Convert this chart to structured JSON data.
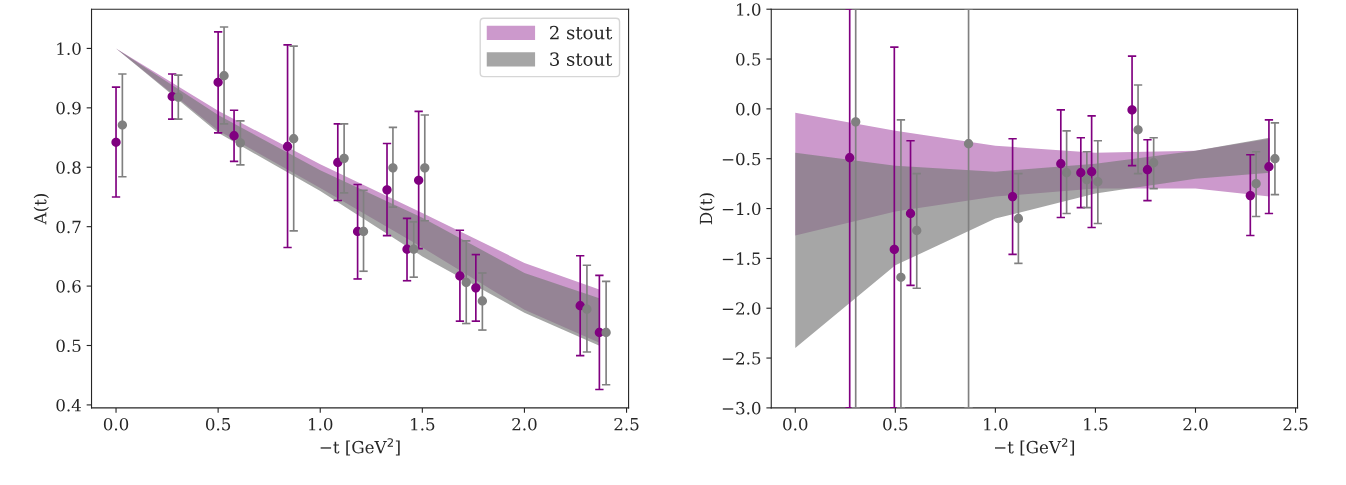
{
  "chart_data": [
    {
      "type": "scatter",
      "xlabel": "−t [GeV$^{2}$]",
      "ylabel": "A(t)",
      "legend": "top right",
      "marker": "circle",
      "xlim": [
        -0.12,
        2.51
      ],
      "ylim": [
        0.395,
        1.066
      ],
      "xticks": [
        {
          "value": 0,
          "label": "0.0"
        },
        {
          "value": 0.5,
          "label": "0.5"
        },
        {
          "value": 1,
          "label": "1.0"
        },
        {
          "value": 1.5,
          "label": "1.5"
        },
        {
          "value": 2,
          "label": "2.0"
        },
        {
          "value": 2.5,
          "label": "2.5"
        }
      ],
      "yticks": [
        {
          "value": 0.4,
          "label": "0.4"
        },
        {
          "value": 0.5,
          "label": "0.5"
        },
        {
          "value": 0.6,
          "label": "0.6"
        },
        {
          "value": 0.7,
          "label": "0.7"
        },
        {
          "value": 0.8,
          "label": "0.8"
        },
        {
          "value": 0.9,
          "label": "0.9"
        },
        {
          "value": 1.0,
          "label": "1.0"
        }
      ],
      "series": [
        {
          "type": "area",
          "name": "2 stout",
          "color": "#cc99cc",
          "x": [
            0,
            0.5,
            1.0,
            1.5,
            2.0,
            2.37
          ],
          "values": [
            null,
            null,
            null,
            null,
            null,
            null
          ],
          "lower": [
            1.0,
            0.862,
            0.765,
            0.665,
            0.56,
            0.504
          ],
          "upper": [
            1.0,
            0.895,
            0.805,
            0.723,
            0.639,
            0.594
          ]
        },
        {
          "type": "area",
          "name": "3 stout",
          "color": "#a6a6a6",
          "x": [
            0,
            0.5,
            1.0,
            1.5,
            2.0,
            2.37
          ],
          "values": [
            null,
            null,
            null,
            null,
            null,
            null
          ],
          "lower": [
            1.0,
            0.858,
            0.76,
            0.65,
            0.555,
            0.499
          ],
          "upper": [
            1.0,
            0.888,
            0.795,
            0.715,
            0.622,
            0.579
          ]
        },
        {
          "color": "#800080",
          "x": [
            0.0,
            0.275,
            0.5,
            0.578,
            0.84,
            1.086,
            1.183,
            1.327,
            1.425,
            1.482,
            1.684,
            1.762,
            2.273,
            2.367
          ],
          "values": [
            0.842,
            0.919,
            0.943,
            0.853,
            0.835,
            0.808,
            0.692,
            0.762,
            0.662,
            0.778,
            0.617,
            0.597,
            0.567,
            0.522
          ],
          "errors": [
            [
              0.75,
              0.935
            ],
            [
              0.881,
              0.957
            ],
            [
              0.858,
              1.028
            ],
            [
              0.81,
              0.896
            ],
            [
              0.665,
              1.006
            ],
            [
              0.744,
              0.873
            ],
            [
              0.612,
              0.771
            ],
            [
              0.685,
              0.84
            ],
            [
              0.609,
              0.714
            ],
            [
              0.663,
              0.894
            ],
            [
              0.541,
              0.694
            ],
            [
              0.541,
              0.653
            ],
            [
              0.483,
              0.651
            ],
            [
              0.426,
              0.618
            ]
          ]
        },
        {
          "color": "#808080",
          "x": [
            0.031,
            0.305,
            0.529,
            0.609,
            0.87,
            1.117,
            1.212,
            1.356,
            1.458,
            1.512,
            1.715,
            1.794,
            2.306,
            2.4
          ],
          "values": [
            0.871,
            0.918,
            0.954,
            0.841,
            0.848,
            0.815,
            0.692,
            0.799,
            0.662,
            0.799,
            0.606,
            0.575,
            0.561,
            0.522
          ],
          "errors": [
            [
              0.784,
              0.957
            ],
            [
              0.881,
              0.955
            ],
            [
              0.873,
              1.036
            ],
            [
              0.804,
              0.878
            ],
            [
              0.693,
              1.004
            ],
            [
              0.757,
              0.873
            ],
            [
              0.625,
              0.761
            ],
            [
              0.733,
              0.867
            ],
            [
              0.615,
              0.708
            ],
            [
              0.71,
              0.888
            ],
            [
              0.537,
              0.676
            ],
            [
              0.526,
              0.622
            ],
            [
              0.489,
              0.635
            ],
            [
              0.434,
              0.608
            ]
          ]
        }
      ]
    },
    {
      "type": "scatter",
      "xlabel": "−t [GeV$^{2}$]",
      "ylabel": "D(t)",
      "marker": "circle",
      "xlim": [
        -0.12,
        2.51
      ],
      "ylim": [
        -3.0,
        1.0
      ],
      "xticks": [
        {
          "value": 0,
          "label": "0.0"
        },
        {
          "value": 0.5,
          "label": "0.5"
        },
        {
          "value": 1,
          "label": "1.0"
        },
        {
          "value": 1.5,
          "label": "1.5"
        },
        {
          "value": 2,
          "label": "2.0"
        },
        {
          "value": 2.5,
          "label": "2.5"
        }
      ],
      "yticks": [
        {
          "value": -3.0,
          "label": "−3.0"
        },
        {
          "value": -2.5,
          "label": "−2.5"
        },
        {
          "value": -2.0,
          "label": "−2.0"
        },
        {
          "value": -1.5,
          "label": "−1.5"
        },
        {
          "value": -1.0,
          "label": "−1.0"
        },
        {
          "value": -0.5,
          "label": "−0.5"
        },
        {
          "value": 0.0,
          "label": "0.0"
        },
        {
          "value": 0.5,
          "label": "0.5"
        },
        {
          "value": 1.0,
          "label": "1.0"
        }
      ],
      "series": [
        {
          "type": "area",
          "color": "#cc99cc",
          "x": [
            0,
            0.5,
            1.0,
            1.5,
            2.0,
            2.37
          ],
          "values": [
            null,
            null,
            null,
            null,
            null,
            null
          ],
          "lower": [
            -1.27,
            -1.03,
            -0.88,
            -0.8,
            -0.8,
            -0.88
          ],
          "upper": [
            -0.04,
            -0.22,
            -0.37,
            -0.44,
            -0.42,
            -0.3
          ]
        },
        {
          "type": "area",
          "color": "#a6a6a6",
          "x": [
            0,
            0.5,
            1.0,
            1.5,
            2.0,
            2.37
          ],
          "values": [
            null,
            null,
            null,
            null,
            null,
            null
          ],
          "lower": [
            -2.4,
            -1.57,
            -1.1,
            -0.85,
            -0.7,
            -0.64
          ],
          "upper": [
            -0.44,
            -0.57,
            -0.63,
            -0.55,
            -0.42,
            -0.29
          ]
        },
        {
          "color": "#800080",
          "x": [
            0.272,
            0.495,
            0.576,
            0.837,
            1.086,
            1.181,
            1.327,
            1.427,
            1.481,
            1.683,
            1.76,
            2.274,
            2.367
          ],
          "values": [
            -0.49,
            -1.41,
            -1.05,
            null,
            -0.88,
            null,
            -0.55,
            -0.64,
            -0.63,
            -0.01,
            -0.61,
            -0.87,
            -0.58
          ],
          "errors": [
            [
              -3.0,
              1.0
            ],
            [
              -3.0,
              0.62
            ],
            [
              -1.77,
              -0.32
            ],
            null,
            [
              -1.46,
              -0.3
            ],
            null,
            [
              -1.09,
              -0.01
            ],
            [
              -0.99,
              -0.29
            ],
            [
              -1.19,
              -0.07
            ],
            [
              -0.57,
              0.53
            ],
            [
              -0.92,
              -0.31
            ],
            [
              -1.27,
              -0.46
            ],
            [
              -1.05,
              -0.11
            ]
          ]
        },
        {
          "color": "#808080",
          "x": [
            0.302,
            0.528,
            0.607,
            0.866,
            1.115,
            1.212,
            1.356,
            1.457,
            1.512,
            1.713,
            1.791,
            2.303,
            2.397
          ],
          "values": [
            -0.13,
            -1.69,
            -1.22,
            -0.35,
            -1.1,
            null,
            -0.64,
            -0.71,
            -0.73,
            -0.21,
            -0.54,
            -0.75,
            -0.5
          ],
          "errors": [
            [
              -3.0,
              1.0
            ],
            [
              -3.0,
              -0.11
            ],
            [
              -1.8,
              -0.65
            ],
            [
              -3.0,
              1.0
            ],
            [
              -1.55,
              -0.65
            ],
            null,
            [
              -1.05,
              -0.22
            ],
            [
              -0.99,
              -0.43
            ],
            [
              -1.15,
              -0.32
            ],
            [
              -0.65,
              0.24
            ],
            [
              -0.8,
              -0.29
            ],
            [
              -1.08,
              -0.43
            ],
            [
              -0.86,
              -0.14
            ]
          ]
        }
      ]
    }
  ]
}
